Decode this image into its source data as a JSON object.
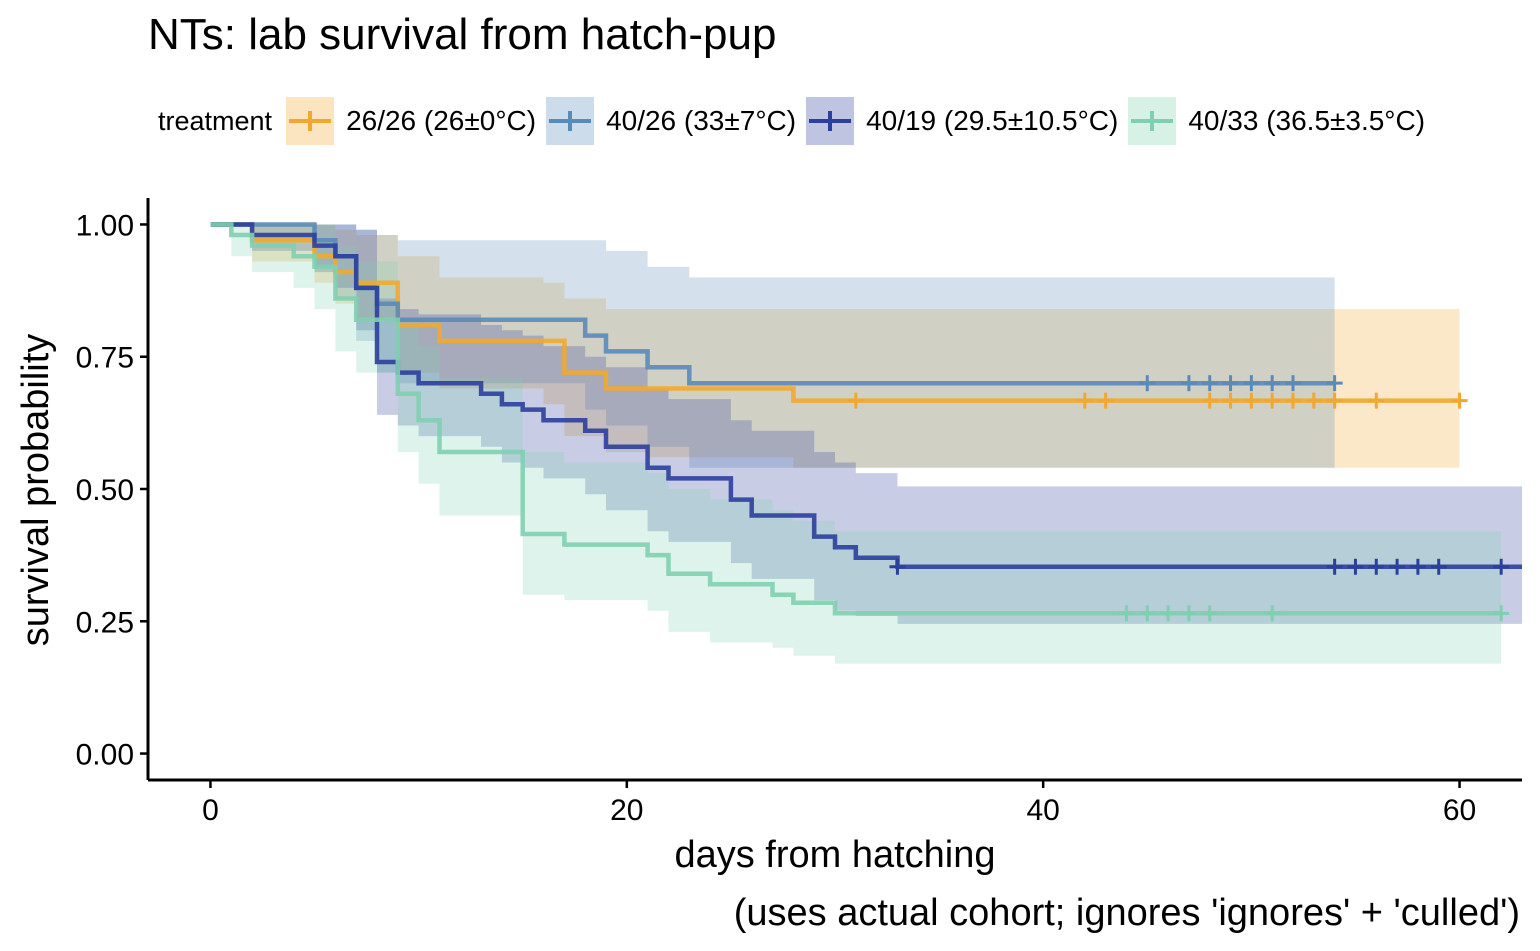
{
  "chart_data": {
    "type": "line",
    "subtype": "kaplan-meier step survival with confidence bands and censor marks",
    "title": "NTs: lab survival from hatch-pup",
    "xlabel": "days from hatching",
    "caption": "(uses actual cohort; ignores 'ignores' + 'culled')",
    "ylabel": "survival probability",
    "xlim": [
      -3,
      63
    ],
    "ylim": [
      -0.05,
      1.05
    ],
    "x_ticks": [
      0,
      20,
      40,
      60
    ],
    "x_tick_labels": [
      "0",
      "20",
      "40",
      "60"
    ],
    "y_ticks": [
      0,
      0.25,
      0.5,
      0.75,
      1
    ],
    "y_tick_labels": [
      "0.00",
      "0.25",
      "0.50",
      "0.75",
      "1.00"
    ],
    "grid": false,
    "legend": {
      "title": "treatment",
      "position": "top"
    },
    "series": [
      {
        "name": "26/26 (26±0°C)",
        "color": "#F0A830",
        "steps": [
          [
            0,
            1
          ],
          [
            2,
            0.97
          ],
          [
            5,
            0.94
          ],
          [
            6,
            0.91
          ],
          [
            7,
            0.89
          ],
          [
            9,
            0.81
          ],
          [
            11,
            0.78
          ],
          [
            16,
            0.78
          ],
          [
            17,
            0.72
          ],
          [
            19,
            0.69
          ],
          [
            21,
            0.69
          ],
          [
            28,
            0.667
          ],
          [
            60,
            0.667
          ]
        ],
        "ci_steps": [
          [
            0,
            1,
            1
          ],
          [
            2,
            0.93,
            1
          ],
          [
            5,
            0.89,
            1
          ],
          [
            6,
            0.85,
            0.99
          ],
          [
            7,
            0.82,
            0.98
          ],
          [
            9,
            0.72,
            0.94
          ],
          [
            11,
            0.69,
            0.9
          ],
          [
            16,
            0.66,
            0.89
          ],
          [
            17,
            0.6,
            0.86
          ],
          [
            19,
            0.57,
            0.84
          ],
          [
            21,
            0.56,
            0.84
          ],
          [
            28,
            0.54,
            0.84
          ],
          [
            60,
            0.54,
            0.84
          ]
        ],
        "censor_x": [
          31,
          42,
          43,
          48,
          49,
          50,
          51,
          52,
          53,
          54,
          56,
          60
        ]
      },
      {
        "name": "40/26 (33±7°C)",
        "color": "#5A8AB8",
        "steps": [
          [
            0,
            1
          ],
          [
            5,
            0.97
          ],
          [
            6,
            0.94
          ],
          [
            7,
            0.88
          ],
          [
            8,
            0.85
          ],
          [
            9,
            0.82
          ],
          [
            18,
            0.79
          ],
          [
            19,
            0.76
          ],
          [
            21,
            0.73
          ],
          [
            23,
            0.7
          ],
          [
            54,
            0.7
          ]
        ],
        "ci_steps": [
          [
            0,
            1,
            1
          ],
          [
            5,
            0.92,
            1
          ],
          [
            6,
            0.86,
            1
          ],
          [
            7,
            0.78,
            0.99
          ],
          [
            8,
            0.72,
            0.98
          ],
          [
            9,
            0.7,
            0.97
          ],
          [
            18,
            0.65,
            0.97
          ],
          [
            19,
            0.62,
            0.95
          ],
          [
            21,
            0.58,
            0.92
          ],
          [
            23,
            0.54,
            0.9
          ],
          [
            54,
            0.54,
            0.9
          ]
        ],
        "censor_x": [
          45,
          47,
          48,
          49,
          50,
          51,
          52,
          54
        ]
      },
      {
        "name": "40/19 (29.5±10.5°C)",
        "color": "#2B3F9C",
        "steps": [
          [
            0,
            1
          ],
          [
            2,
            0.98
          ],
          [
            5,
            0.96
          ],
          [
            6,
            0.94
          ],
          [
            7,
            0.88
          ],
          [
            8,
            0.74
          ],
          [
            9,
            0.72
          ],
          [
            10,
            0.7
          ],
          [
            13,
            0.68
          ],
          [
            14,
            0.66
          ],
          [
            15,
            0.65
          ],
          [
            16,
            0.63
          ],
          [
            18,
            0.61
          ],
          [
            19,
            0.58
          ],
          [
            21,
            0.54
          ],
          [
            22,
            0.52
          ],
          [
            25,
            0.48
          ],
          [
            26,
            0.45
          ],
          [
            29,
            0.41
          ],
          [
            30,
            0.39
          ],
          [
            31,
            0.37
          ],
          [
            33,
            0.353
          ],
          [
            63,
            0.353
          ]
        ],
        "ci_steps": [
          [
            0,
            1,
            1
          ],
          [
            2,
            0.95,
            1
          ],
          [
            5,
            0.91,
            1
          ],
          [
            6,
            0.88,
            1
          ],
          [
            7,
            0.8,
            0.99
          ],
          [
            8,
            0.64,
            0.86
          ],
          [
            9,
            0.62,
            0.84
          ],
          [
            10,
            0.6,
            0.83
          ],
          [
            13,
            0.58,
            0.81
          ],
          [
            14,
            0.55,
            0.8
          ],
          [
            15,
            0.54,
            0.79
          ],
          [
            16,
            0.52,
            0.77
          ],
          [
            18,
            0.49,
            0.75
          ],
          [
            19,
            0.46,
            0.73
          ],
          [
            21,
            0.42,
            0.69
          ],
          [
            22,
            0.4,
            0.67
          ],
          [
            25,
            0.36,
            0.63
          ],
          [
            26,
            0.33,
            0.61
          ],
          [
            29,
            0.29,
            0.57
          ],
          [
            30,
            0.27,
            0.55
          ],
          [
            31,
            0.26,
            0.53
          ],
          [
            33,
            0.245,
            0.505
          ],
          [
            63,
            0.245,
            0.505
          ]
        ],
        "censor_x": [
          33,
          54,
          55,
          56,
          57,
          58,
          59,
          62
        ]
      },
      {
        "name": "40/33 (36.5±3.5°C)",
        "color": "#7FCFB0",
        "steps": [
          [
            0,
            1
          ],
          [
            1,
            0.98
          ],
          [
            2,
            0.96
          ],
          [
            4,
            0.94
          ],
          [
            5,
            0.92
          ],
          [
            6,
            0.86
          ],
          [
            7,
            0.82
          ],
          [
            9,
            0.68
          ],
          [
            10,
            0.63
          ],
          [
            11,
            0.57
          ],
          [
            15,
            0.415
          ],
          [
            17,
            0.395
          ],
          [
            21,
            0.375
          ],
          [
            22,
            0.34
          ],
          [
            24,
            0.32
          ],
          [
            27,
            0.3
          ],
          [
            28,
            0.285
          ],
          [
            30,
            0.265
          ],
          [
            62,
            0.265
          ]
        ],
        "ci_steps": [
          [
            0,
            1,
            1
          ],
          [
            1,
            0.94,
            1
          ],
          [
            2,
            0.91,
            1
          ],
          [
            4,
            0.88,
            1
          ],
          [
            5,
            0.84,
            1
          ],
          [
            6,
            0.76,
            0.96
          ],
          [
            7,
            0.72,
            0.93
          ],
          [
            9,
            0.57,
            0.82
          ],
          [
            10,
            0.51,
            0.77
          ],
          [
            11,
            0.45,
            0.71
          ],
          [
            15,
            0.3,
            0.57
          ],
          [
            17,
            0.29,
            0.55
          ],
          [
            21,
            0.27,
            0.53
          ],
          [
            22,
            0.23,
            0.5
          ],
          [
            24,
            0.21,
            0.48
          ],
          [
            27,
            0.2,
            0.46
          ],
          [
            28,
            0.185,
            0.44
          ],
          [
            30,
            0.17,
            0.42
          ],
          [
            62,
            0.17,
            0.42
          ]
        ],
        "censor_x": [
          44,
          45,
          46,
          47,
          48,
          51,
          62
        ]
      }
    ]
  }
}
